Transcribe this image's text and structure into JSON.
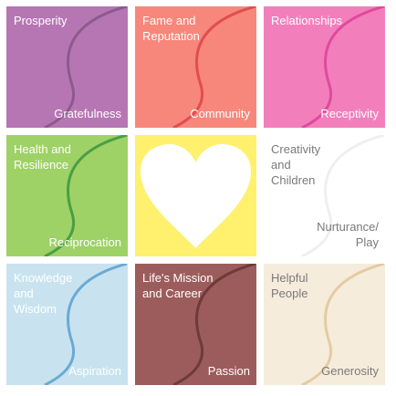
{
  "tiles": [
    {
      "id": "prosperity",
      "top": "Prosperity",
      "bottom": "Gratefulness",
      "fill": "#b676b3",
      "curve": "#8c5a8c",
      "text": "light",
      "heart": false
    },
    {
      "id": "fame",
      "top": "Fame and\nReputation",
      "bottom": "Community",
      "fill": "#f7877b",
      "curve": "#e14d52",
      "text": "light",
      "heart": false
    },
    {
      "id": "relationships",
      "top": "Relationships",
      "bottom": "Receptivity",
      "fill": "#f27fbc",
      "curve": "#e04a9b",
      "text": "light",
      "heart": false
    },
    {
      "id": "health",
      "top": "Health and\nResilience",
      "bottom": "Reciprocation",
      "fill": "#9ed166",
      "curve": "#4a9e45",
      "text": "light",
      "heart": false
    },
    {
      "id": "center",
      "top": "",
      "bottom": "",
      "fill": "#fff06e",
      "curve": "",
      "text": "light",
      "heart": true
    },
    {
      "id": "creativity",
      "top": "Creativity\nand\nChildren",
      "bottom": "Nurturance/\nPlay",
      "fill": "#ffffff",
      "curve": "#eef0ee",
      "text": "dark",
      "heart": false
    },
    {
      "id": "knowledge",
      "top": "Knowledge\nand\nWisdom",
      "bottom": "Aspiration",
      "fill": "#c8e3ef",
      "curve": "#6aaad4",
      "text": "light",
      "heart": false
    },
    {
      "id": "mission",
      "top": "Life's Mission\nand Career",
      "bottom": "Passion",
      "fill": "#9c5c5b",
      "curve": "#6e3a3a",
      "text": "light",
      "heart": false
    },
    {
      "id": "helpful",
      "top": "Helpful\nPeople",
      "bottom": "Generosity",
      "fill": "#f6ecdc",
      "curve": "#e3cca2",
      "text": "dark",
      "heart": false
    }
  ]
}
